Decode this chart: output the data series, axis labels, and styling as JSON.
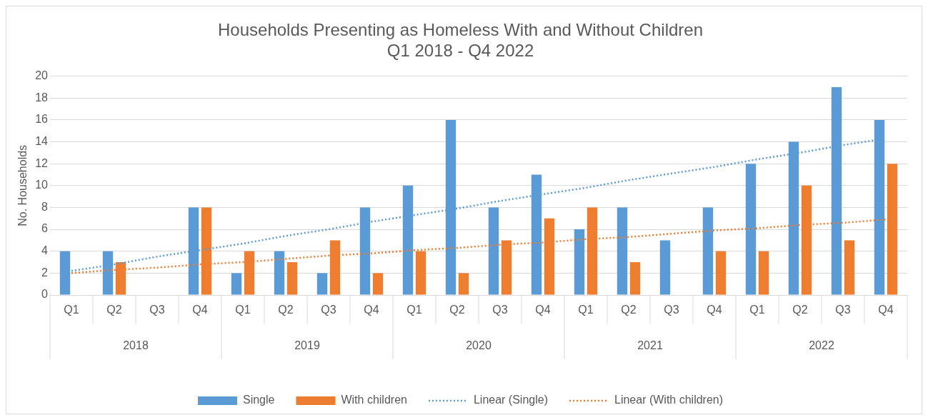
{
  "chart_data": {
    "type": "bar",
    "title": "Households Presenting as Homeless With and Without Children\nQ1 2018 - Q4 2022",
    "ylabel": "No. Households",
    "categories": [
      "Q1",
      "Q2",
      "Q3",
      "Q4",
      "Q1",
      "Q2",
      "Q3",
      "Q4",
      "Q1",
      "Q2",
      "Q3",
      "Q4",
      "Q1",
      "Q2",
      "Q3",
      "Q4",
      "Q1",
      "Q2",
      "Q3",
      "Q4"
    ],
    "annotations": [
      "2018",
      "2019",
      "2020",
      "2021",
      "2022"
    ],
    "series": [
      {
        "name": "Single",
        "color": "#5b9bd5",
        "values": [
          4,
          4,
          0,
          8,
          2,
          4,
          2,
          8,
          10,
          16,
          8,
          11,
          6,
          8,
          5,
          8,
          12,
          14,
          19,
          16
        ]
      },
      {
        "name": "With children",
        "color": "#ed7d31",
        "values": [
          0,
          3,
          0,
          8,
          4,
          3,
          5,
          2,
          4,
          2,
          5,
          7,
          8,
          3,
          0,
          4,
          4,
          10,
          5,
          12
        ]
      },
      {
        "name": "Linear (Single)",
        "type": "line",
        "line_style": "dotted",
        "color": "#5b9bd5",
        "values": [
          2.2,
          2.8,
          3.5,
          4.1,
          4.7,
          5.4,
          6.0,
          6.7,
          7.3,
          7.9,
          8.6,
          9.2,
          9.8,
          10.5,
          11.1,
          11.7,
          12.4,
          13.0,
          13.7,
          14.3
        ]
      },
      {
        "name": "Linear (With children)",
        "type": "line",
        "line_style": "dotted",
        "color": "#ed7d31",
        "values": [
          2.0,
          2.3,
          2.5,
          2.8,
          3.0,
          3.3,
          3.6,
          3.8,
          4.1,
          4.3,
          4.6,
          4.8,
          5.1,
          5.3,
          5.6,
          5.9,
          6.1,
          6.4,
          6.6,
          6.9
        ]
      }
    ],
    "ylim": [
      0,
      20
    ],
    "yticks": [
      0,
      2,
      4,
      6,
      8,
      10,
      12,
      14,
      16,
      18,
      20
    ],
    "grid": "y",
    "legend": "bottom",
    "marker": "none"
  }
}
